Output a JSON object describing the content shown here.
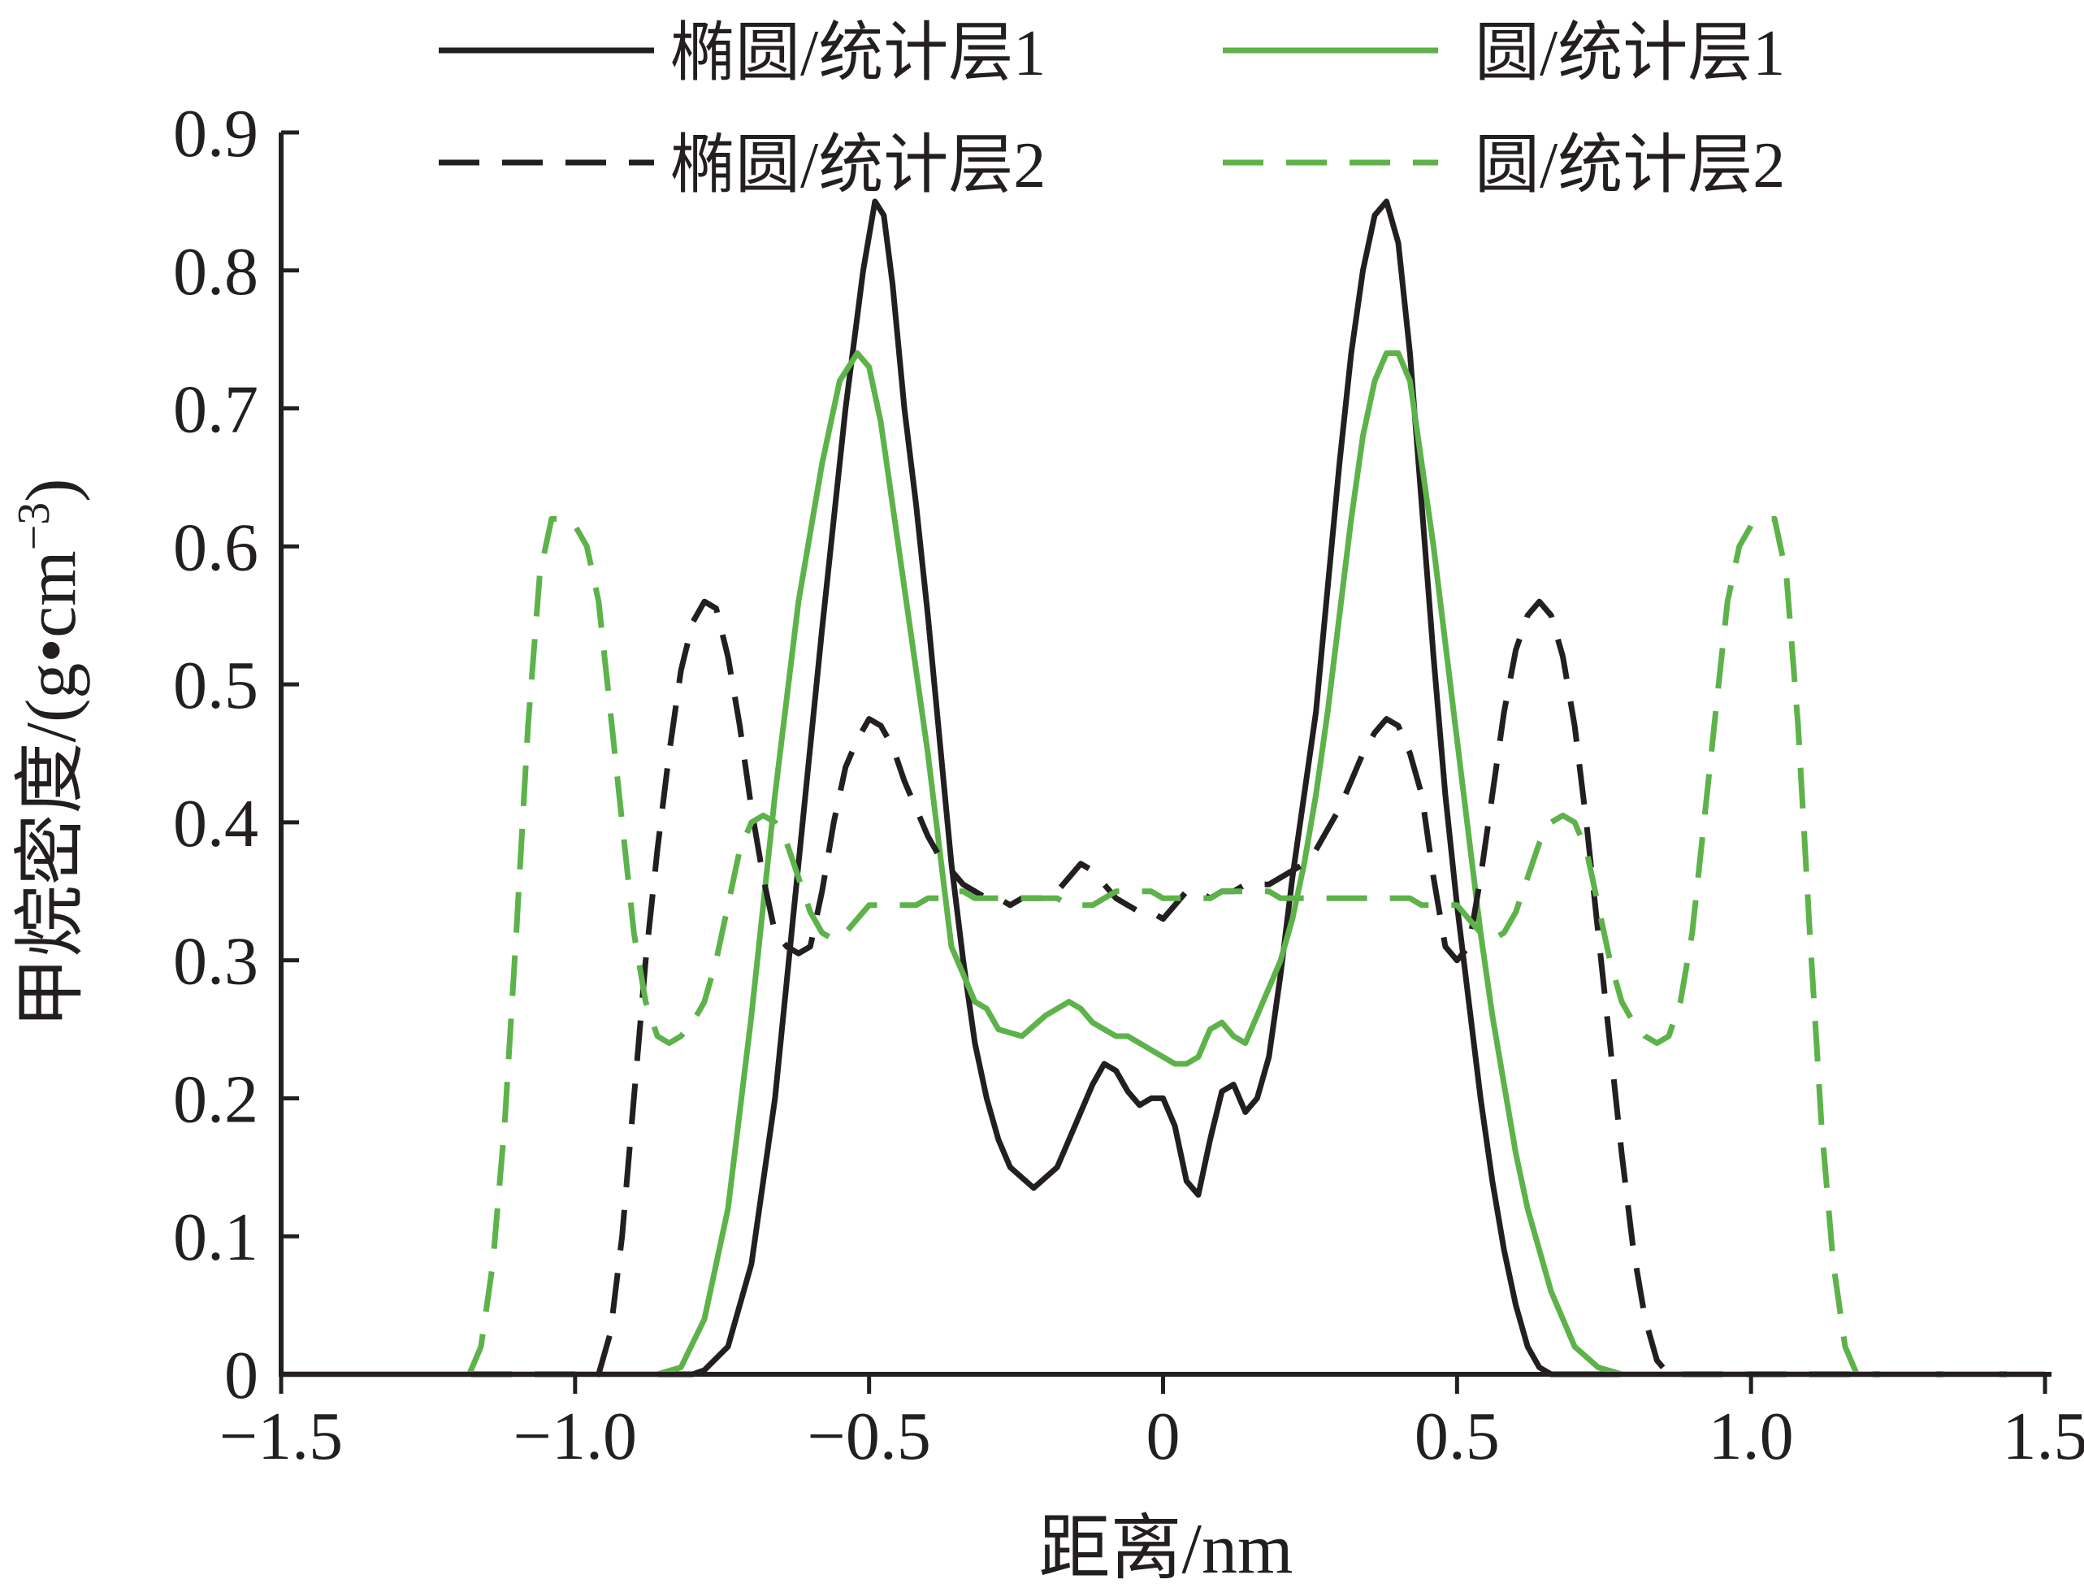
{
  "chart_data": {
    "type": "line",
    "xlabel": "距离/nm",
    "ylabel": "甲烷密度/(g·cm⁻³)",
    "ylabel_parts": {
      "main": "甲烷密度/(g•cm",
      "sup": "−3",
      "close": ")"
    },
    "xlim": [
      -1.5,
      1.5
    ],
    "ylim": [
      0,
      0.9
    ],
    "x_ticks": [
      -1.5,
      -1.0,
      -0.5,
      0,
      0.5,
      1.0,
      1.5
    ],
    "x_tick_labels": [
      "−1.5",
      "−1.0",
      "−0.5",
      "0",
      "0.5",
      "1.0",
      "1.5"
    ],
    "y_ticks": [
      0,
      0.1,
      0.2,
      0.3,
      0.4,
      0.5,
      0.6,
      0.7,
      0.8,
      0.9
    ],
    "y_tick_labels": [
      "0",
      "0.1",
      "0.2",
      "0.3",
      "0.4",
      "0.5",
      "0.6",
      "0.7",
      "0.8",
      "0.9"
    ],
    "grid": false,
    "legend_position": "top",
    "series": [
      {
        "name": "椭圆/统计层1",
        "color": "#231f20",
        "dash": "solid",
        "x": [
          -1.5,
          -0.8,
          -0.78,
          -0.74,
          -0.7,
          -0.66,
          -0.62,
          -0.58,
          -0.54,
          -0.51,
          -0.49,
          -0.475,
          -0.46,
          -0.44,
          -0.42,
          -0.4,
          -0.38,
          -0.36,
          -0.34,
          -0.32,
          -0.3,
          -0.28,
          -0.26,
          -0.22,
          -0.18,
          -0.15,
          -0.12,
          -0.1,
          -0.08,
          -0.06,
          -0.04,
          -0.02,
          0.0,
          0.02,
          0.04,
          0.06,
          0.08,
          0.1,
          0.12,
          0.14,
          0.16,
          0.18,
          0.2,
          0.22,
          0.24,
          0.26,
          0.28,
          0.3,
          0.32,
          0.34,
          0.36,
          0.38,
          0.4,
          0.42,
          0.44,
          0.46,
          0.48,
          0.5,
          0.52,
          0.54,
          0.56,
          0.58,
          0.6,
          0.62,
          0.64,
          0.66,
          0.68,
          0.7,
          0.72,
          0.74,
          0.76,
          0.78,
          0.8,
          1.5
        ],
        "y": [
          0.0,
          0.0,
          0.003,
          0.02,
          0.08,
          0.2,
          0.37,
          0.54,
          0.7,
          0.8,
          0.85,
          0.84,
          0.79,
          0.7,
          0.63,
          0.55,
          0.46,
          0.37,
          0.3,
          0.24,
          0.2,
          0.17,
          0.15,
          0.135,
          0.15,
          0.18,
          0.21,
          0.225,
          0.22,
          0.205,
          0.195,
          0.2,
          0.2,
          0.18,
          0.14,
          0.13,
          0.17,
          0.205,
          0.21,
          0.19,
          0.2,
          0.23,
          0.29,
          0.36,
          0.42,
          0.48,
          0.57,
          0.66,
          0.74,
          0.8,
          0.84,
          0.85,
          0.82,
          0.74,
          0.63,
          0.52,
          0.42,
          0.34,
          0.27,
          0.2,
          0.14,
          0.09,
          0.05,
          0.02,
          0.005,
          0.0,
          0.0,
          0.0,
          0.0,
          0.0,
          0.0,
          0.0,
          0.0,
          0.0
        ]
      },
      {
        "name": "圆/统计层1",
        "color": "#5db34a",
        "dash": "solid",
        "x": [
          -1.5,
          -0.86,
          -0.82,
          -0.78,
          -0.74,
          -0.7,
          -0.66,
          -0.62,
          -0.58,
          -0.55,
          -0.52,
          -0.5,
          -0.48,
          -0.46,
          -0.44,
          -0.42,
          -0.4,
          -0.38,
          -0.36,
          -0.34,
          -0.32,
          -0.3,
          -0.28,
          -0.24,
          -0.2,
          -0.16,
          -0.14,
          -0.12,
          -0.1,
          -0.08,
          -0.06,
          -0.04,
          -0.02,
          0.0,
          0.02,
          0.04,
          0.06,
          0.08,
          0.1,
          0.12,
          0.14,
          0.16,
          0.18,
          0.2,
          0.22,
          0.24,
          0.26,
          0.28,
          0.3,
          0.32,
          0.34,
          0.36,
          0.38,
          0.4,
          0.42,
          0.44,
          0.46,
          0.48,
          0.5,
          0.52,
          0.54,
          0.56,
          0.58,
          0.6,
          0.62,
          0.66,
          0.7,
          0.74,
          0.78,
          0.82,
          0.86,
          0.9,
          1.5
        ],
        "y": [
          0.0,
          0.0,
          0.005,
          0.04,
          0.12,
          0.26,
          0.42,
          0.56,
          0.66,
          0.72,
          0.74,
          0.73,
          0.69,
          0.63,
          0.57,
          0.51,
          0.45,
          0.38,
          0.31,
          0.29,
          0.27,
          0.265,
          0.25,
          0.245,
          0.26,
          0.27,
          0.265,
          0.255,
          0.25,
          0.245,
          0.245,
          0.24,
          0.235,
          0.23,
          0.225,
          0.225,
          0.23,
          0.25,
          0.255,
          0.245,
          0.24,
          0.26,
          0.28,
          0.3,
          0.33,
          0.37,
          0.42,
          0.48,
          0.55,
          0.62,
          0.68,
          0.72,
          0.74,
          0.74,
          0.72,
          0.66,
          0.6,
          0.53,
          0.46,
          0.39,
          0.32,
          0.26,
          0.21,
          0.16,
          0.12,
          0.06,
          0.02,
          0.005,
          0.0,
          0.0,
          0.0,
          0.0,
          0.0
        ]
      },
      {
        "name": "椭圆/统计层2",
        "color": "#231f20",
        "dash": "dash",
        "x": [
          -1.5,
          -0.96,
          -0.94,
          -0.92,
          -0.9,
          -0.88,
          -0.86,
          -0.84,
          -0.82,
          -0.8,
          -0.78,
          -0.76,
          -0.74,
          -0.72,
          -0.7,
          -0.68,
          -0.66,
          -0.64,
          -0.62,
          -0.6,
          -0.58,
          -0.56,
          -0.54,
          -0.52,
          -0.5,
          -0.48,
          -0.46,
          -0.44,
          -0.42,
          -0.4,
          -0.38,
          -0.36,
          -0.34,
          -0.32,
          -0.3,
          -0.28,
          -0.26,
          -0.24,
          -0.22,
          -0.2,
          -0.18,
          -0.16,
          -0.14,
          -0.12,
          -0.1,
          -0.08,
          -0.06,
          -0.04,
          -0.02,
          0.0,
          0.02,
          0.04,
          0.06,
          0.08,
          0.1,
          0.12,
          0.14,
          0.16,
          0.18,
          0.2,
          0.22,
          0.24,
          0.26,
          0.28,
          0.3,
          0.32,
          0.34,
          0.36,
          0.38,
          0.4,
          0.42,
          0.44,
          0.46,
          0.48,
          0.5,
          0.52,
          0.54,
          0.56,
          0.58,
          0.6,
          0.62,
          0.64,
          0.66,
          0.68,
          0.7,
          0.72,
          0.74,
          0.76,
          0.78,
          0.8,
          0.82,
          0.84,
          0.86,
          0.88,
          0.9,
          0.92,
          0.94,
          0.96,
          1.5
        ],
        "y": [
          0.0,
          0.0,
          0.03,
          0.1,
          0.2,
          0.3,
          0.38,
          0.45,
          0.51,
          0.545,
          0.56,
          0.555,
          0.52,
          0.47,
          0.41,
          0.36,
          0.32,
          0.31,
          0.305,
          0.31,
          0.35,
          0.4,
          0.44,
          0.46,
          0.475,
          0.47,
          0.455,
          0.43,
          0.41,
          0.39,
          0.375,
          0.365,
          0.355,
          0.35,
          0.345,
          0.345,
          0.34,
          0.345,
          0.345,
          0.345,
          0.35,
          0.36,
          0.37,
          0.365,
          0.355,
          0.345,
          0.34,
          0.335,
          0.335,
          0.33,
          0.34,
          0.35,
          0.35,
          0.345,
          0.35,
          0.35,
          0.355,
          0.355,
          0.355,
          0.36,
          0.365,
          0.37,
          0.38,
          0.395,
          0.41,
          0.43,
          0.45,
          0.465,
          0.475,
          0.47,
          0.45,
          0.42,
          0.36,
          0.31,
          0.3,
          0.31,
          0.36,
          0.42,
          0.48,
          0.525,
          0.55,
          0.56,
          0.55,
          0.52,
          0.47,
          0.4,
          0.32,
          0.24,
          0.16,
          0.09,
          0.04,
          0.01,
          0.0,
          0.0,
          0.0,
          0.0,
          0.0,
          0.0,
          0.0
        ]
      },
      {
        "name": "圆/统计层2",
        "color": "#5db34a",
        "dash": "dash",
        "x": [
          -1.5,
          -1.18,
          -1.16,
          -1.14,
          -1.12,
          -1.1,
          -1.08,
          -1.06,
          -1.04,
          -1.02,
          -1.0,
          -0.98,
          -0.96,
          -0.94,
          -0.92,
          -0.9,
          -0.88,
          -0.86,
          -0.84,
          -0.82,
          -0.8,
          -0.78,
          -0.76,
          -0.74,
          -0.72,
          -0.7,
          -0.68,
          -0.66,
          -0.64,
          -0.62,
          -0.6,
          -0.58,
          -0.56,
          -0.54,
          -0.52,
          -0.5,
          -0.48,
          -0.46,
          -0.44,
          -0.42,
          -0.4,
          -0.38,
          -0.36,
          -0.34,
          -0.32,
          -0.3,
          -0.28,
          -0.26,
          -0.24,
          -0.22,
          -0.2,
          -0.18,
          -0.16,
          -0.14,
          -0.12,
          -0.1,
          -0.08,
          -0.06,
          -0.04,
          -0.02,
          0.0,
          0.02,
          0.04,
          0.06,
          0.08,
          0.1,
          0.12,
          0.14,
          0.16,
          0.18,
          0.2,
          0.22,
          0.24,
          0.26,
          0.28,
          0.3,
          0.32,
          0.34,
          0.36,
          0.38,
          0.4,
          0.42,
          0.44,
          0.46,
          0.48,
          0.5,
          0.52,
          0.54,
          0.56,
          0.58,
          0.6,
          0.62,
          0.64,
          0.66,
          0.68,
          0.7,
          0.72,
          0.74,
          0.76,
          0.78,
          0.8,
          0.82,
          0.84,
          0.86,
          0.88,
          0.9,
          0.92,
          0.94,
          0.96,
          0.98,
          1.0,
          1.02,
          1.04,
          1.06,
          1.08,
          1.1,
          1.12,
          1.14,
          1.16,
          1.18,
          1.5
        ],
        "y": [
          0.0,
          0.0,
          0.02,
          0.08,
          0.18,
          0.32,
          0.47,
          0.58,
          0.62,
          0.62,
          0.615,
          0.6,
          0.56,
          0.48,
          0.4,
          0.32,
          0.27,
          0.245,
          0.24,
          0.245,
          0.255,
          0.27,
          0.3,
          0.34,
          0.38,
          0.4,
          0.405,
          0.4,
          0.385,
          0.36,
          0.335,
          0.32,
          0.315,
          0.32,
          0.33,
          0.34,
          0.34,
          0.34,
          0.34,
          0.34,
          0.345,
          0.345,
          0.35,
          0.35,
          0.345,
          0.345,
          0.345,
          0.345,
          0.345,
          0.345,
          0.345,
          0.345,
          0.34,
          0.34,
          0.34,
          0.345,
          0.35,
          0.35,
          0.35,
          0.35,
          0.345,
          0.345,
          0.345,
          0.345,
          0.345,
          0.35,
          0.35,
          0.35,
          0.35,
          0.35,
          0.345,
          0.345,
          0.345,
          0.345,
          0.345,
          0.345,
          0.345,
          0.345,
          0.345,
          0.345,
          0.345,
          0.345,
          0.34,
          0.34,
          0.34,
          0.34,
          0.33,
          0.32,
          0.315,
          0.32,
          0.335,
          0.36,
          0.385,
          0.4,
          0.405,
          0.4,
          0.38,
          0.34,
          0.3,
          0.27,
          0.255,
          0.245,
          0.24,
          0.245,
          0.27,
          0.32,
          0.4,
          0.48,
          0.56,
          0.6,
          0.615,
          0.62,
          0.62,
          0.58,
          0.47,
          0.32,
          0.18,
          0.08,
          0.02,
          0.0,
          0.0
        ]
      }
    ]
  }
}
